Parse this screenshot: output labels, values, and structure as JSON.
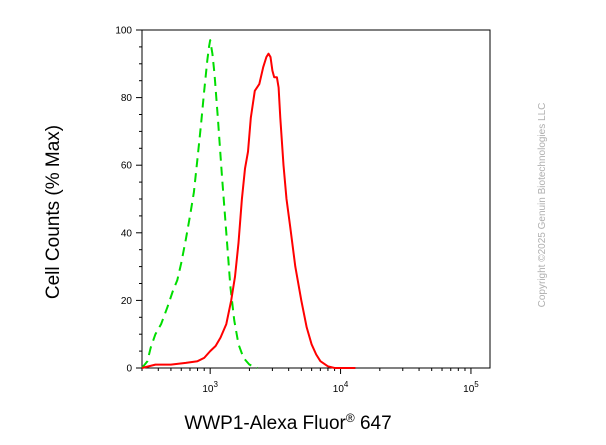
{
  "chart_data": {
    "type": "line",
    "title": "",
    "xlabel": {
      "prefix": "WWP1-Alexa Fluor",
      "superscript": "®",
      "suffix": " 647"
    },
    "ylabel": "Cell Counts (% Max)",
    "xscale": "log",
    "xlim": [
      300,
      140000
    ],
    "ylim": [
      0,
      100
    ],
    "yticks": [
      "0",
      "20",
      "40",
      "60",
      "80",
      "100"
    ],
    "xticks": [
      {
        "value": 1000,
        "base": "10",
        "exp": "3"
      },
      {
        "value": 10000,
        "base": "10",
        "exp": "4"
      },
      {
        "value": 100000,
        "base": "10",
        "exp": "5"
      }
    ],
    "grid": false,
    "legend": "none",
    "series": [
      {
        "color": "#00dd00",
        "style": "dashed",
        "points": [
          [
            300,
            0
          ],
          [
            330,
            2
          ],
          [
            350,
            6
          ],
          [
            380,
            10
          ],
          [
            420,
            13
          ],
          [
            470,
            18
          ],
          [
            520,
            23
          ],
          [
            560,
            26
          ],
          [
            600,
            31
          ],
          [
            650,
            38
          ],
          [
            700,
            45
          ],
          [
            750,
            52
          ],
          [
            800,
            62
          ],
          [
            850,
            72
          ],
          [
            900,
            82
          ],
          [
            950,
            91
          ],
          [
            980,
            95
          ],
          [
            1000,
            97
          ],
          [
            1040,
            93
          ],
          [
            1080,
            87
          ],
          [
            1150,
            73
          ],
          [
            1230,
            57
          ],
          [
            1330,
            40
          ],
          [
            1430,
            24
          ],
          [
            1530,
            14
          ],
          [
            1650,
            7
          ],
          [
            1800,
            3
          ],
          [
            2000,
            1
          ],
          [
            2300,
            0
          ]
        ]
      },
      {
        "color": "#ff0000",
        "style": "solid",
        "points": [
          [
            300,
            0
          ],
          [
            380,
            1
          ],
          [
            500,
            1
          ],
          [
            650,
            1.5
          ],
          [
            800,
            2
          ],
          [
            900,
            3
          ],
          [
            1000,
            5
          ],
          [
            1100,
            6.5
          ],
          [
            1200,
            9
          ],
          [
            1330,
            13
          ],
          [
            1450,
            20
          ],
          [
            1550,
            27
          ],
          [
            1650,
            37
          ],
          [
            1750,
            50
          ],
          [
            1850,
            59
          ],
          [
            1950,
            64
          ],
          [
            2050,
            74
          ],
          [
            2200,
            82
          ],
          [
            2380,
            84
          ],
          [
            2550,
            89
          ],
          [
            2700,
            92
          ],
          [
            2800,
            93
          ],
          [
            2900,
            92
          ],
          [
            3000,
            88
          ],
          [
            3100,
            86
          ],
          [
            3250,
            86
          ],
          [
            3350,
            83
          ],
          [
            3450,
            74
          ],
          [
            3650,
            60
          ],
          [
            3850,
            50
          ],
          [
            4100,
            42
          ],
          [
            4500,
            30
          ],
          [
            5000,
            20
          ],
          [
            5500,
            12
          ],
          [
            6000,
            7
          ],
          [
            6500,
            4
          ],
          [
            7000,
            2
          ],
          [
            8000,
            0.5
          ],
          [
            9000,
            0
          ],
          [
            13000,
            0
          ]
        ]
      }
    ]
  },
  "watermark": "Copyright ©2025 Genuin Biotechnologies LLC"
}
